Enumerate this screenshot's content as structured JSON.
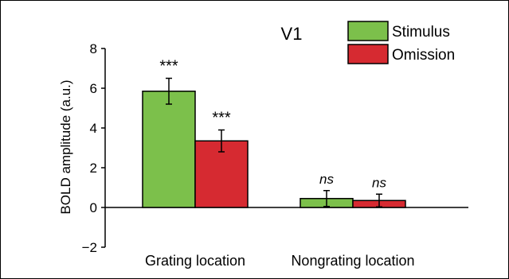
{
  "chart_data": {
    "type": "bar",
    "title": "V1",
    "xlabel": "",
    "ylabel": "BOLD amplitude (a.u.)",
    "categories": [
      "Grating location",
      "Nongrating location"
    ],
    "ylim": [
      -2,
      8
    ],
    "yticks": [
      -2,
      0,
      2,
      4,
      6,
      8
    ],
    "grid": false,
    "legend_position": "top-right",
    "series": [
      {
        "name": "Stimulus",
        "color": "#7cc04b",
        "values": [
          5.85,
          0.45
        ],
        "errors": [
          0.65,
          0.4
        ],
        "annotations": [
          "***",
          "ns"
        ]
      },
      {
        "name": "Omission",
        "color": "#d62a31",
        "values": [
          3.35,
          0.35
        ],
        "errors": [
          0.55,
          0.32
        ],
        "annotations": [
          "***",
          "ns"
        ]
      }
    ]
  }
}
